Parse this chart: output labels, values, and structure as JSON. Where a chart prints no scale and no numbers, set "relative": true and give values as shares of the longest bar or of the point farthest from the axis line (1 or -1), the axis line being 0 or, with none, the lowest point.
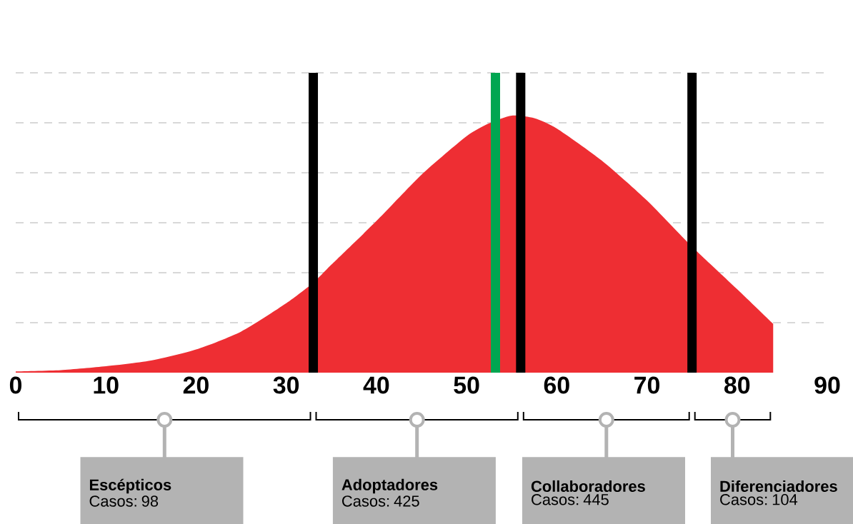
{
  "chart_data": {
    "type": "area",
    "relative": true,
    "color": "#ee2e33",
    "x": [
      0,
      5,
      10,
      15,
      20,
      25,
      30,
      33,
      35,
      40,
      45,
      50,
      52.5,
      55,
      57.5,
      60,
      65,
      70,
      75,
      80,
      84
    ],
    "values": [
      0.005,
      0.01,
      0.025,
      0.047,
      0.09,
      0.16,
      0.27,
      0.35,
      0.42,
      0.59,
      0.77,
      0.92,
      0.97,
      1.0,
      0.99,
      0.95,
      0.825,
      0.67,
      0.49,
      0.325,
      0.19
    ],
    "xlim": [
      0,
      90
    ],
    "xticks": [
      0,
      10,
      20,
      30,
      40,
      50,
      60,
      70,
      80,
      90
    ],
    "grid": "y",
    "ref_lines": [
      {
        "axis": "x",
        "value": 33,
        "color": "#000000"
      },
      {
        "axis": "x",
        "value": 53.2,
        "color": "#00a651"
      },
      {
        "axis": "x",
        "value": 56,
        "color": "#000000"
      },
      {
        "axis": "x",
        "value": 75,
        "color": "#000000"
      }
    ],
    "annotations": [
      "Escépticos",
      "Casos: 98",
      "Adoptadores",
      "Casos: 425",
      "Collaboradores",
      "Casos: 445",
      "Diferenciadores",
      "Casos: 104"
    ]
  }
}
